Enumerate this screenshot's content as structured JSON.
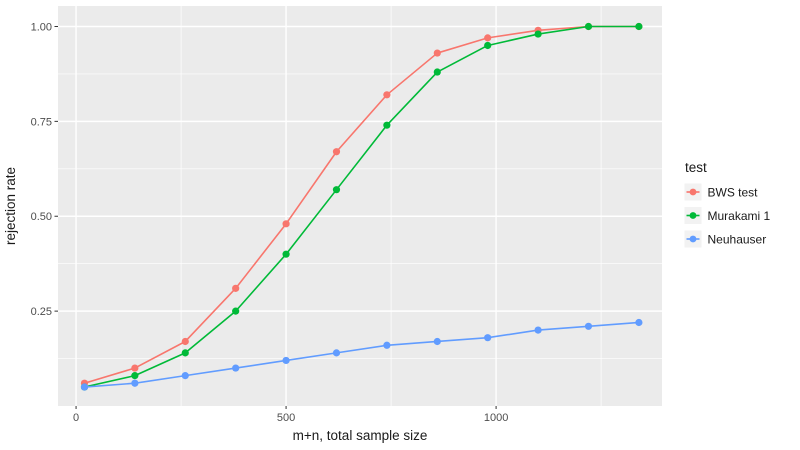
{
  "figure": {
    "background": "#ffffff",
    "panel_background": "#ebebeb",
    "grid_color": "#ffffff",
    "tick_mark_color": "#333333",
    "tick_label_color": "#4d4d4d",
    "text_color": "#1a1a1a",
    "legend_key_background": "#f2f2f2"
  },
  "chart_data": {
    "type": "line",
    "title": "",
    "xlabel": "m+n, total sample size",
    "ylabel": "rejection rate",
    "x": [
      20,
      140,
      260,
      380,
      500,
      620,
      740,
      860,
      980,
      1100,
      1220,
      1340
    ],
    "series": [
      {
        "name": "BWS test",
        "color": "#F8766D",
        "values": [
          0.06,
          0.1,
          0.17,
          0.31,
          0.48,
          0.67,
          0.82,
          0.93,
          0.97,
          0.99,
          1.0,
          1.0
        ]
      },
      {
        "name": "Murakami 1",
        "color": "#00BA38",
        "values": [
          0.05,
          0.08,
          0.14,
          0.25,
          0.4,
          0.57,
          0.74,
          0.88,
          0.95,
          0.98,
          1.0,
          1.0
        ]
      },
      {
        "name": "Neuhauser",
        "color": "#619CFF",
        "values": [
          0.05,
          0.06,
          0.08,
          0.1,
          0.12,
          0.14,
          0.16,
          0.17,
          0.18,
          0.2,
          0.21,
          0.22
        ]
      }
    ],
    "x_ticks": [
      0,
      500,
      1000
    ],
    "x_tick_labels": [
      "0",
      "500",
      "1000"
    ],
    "x_minor_ticks": [
      250,
      750,
      1250
    ],
    "y_ticks": [
      0.25,
      0.5,
      0.75,
      1.0
    ],
    "y_tick_labels": [
      "0.25",
      "0.50",
      "0.75",
      "1.00"
    ],
    "y_minor_ticks": [
      0.125,
      0.375,
      0.625,
      0.875
    ],
    "xlim": [
      -43,
      1395
    ],
    "ylim": [
      0,
      1.054
    ],
    "grid": true,
    "legend": {
      "title": "test",
      "position": "right",
      "entries": [
        "BWS test",
        "Murakami 1",
        "Neuhauser"
      ]
    }
  }
}
